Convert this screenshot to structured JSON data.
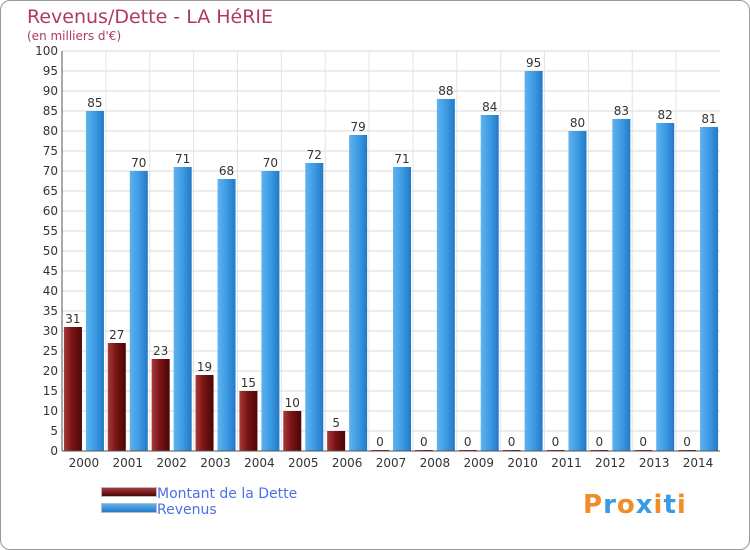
{
  "chart_data": {
    "type": "bar",
    "title": "Revenus/Dette - LA HéRIE",
    "subtitle": "(en milliers d'€)",
    "categories": [
      "2000",
      "2001",
      "2002",
      "2003",
      "2004",
      "2005",
      "2006",
      "2007",
      "2008",
      "2009",
      "2010",
      "2011",
      "2012",
      "2013",
      "2014"
    ],
    "ylim": [
      0,
      100
    ],
    "ytick_step": 5,
    "grid": true,
    "series": [
      {
        "name": "Montant de la Dette",
        "color": "#7a1414",
        "values": [
          31,
          27,
          23,
          19,
          15,
          10,
          5,
          0,
          0,
          0,
          0,
          0,
          0,
          0,
          0
        ]
      },
      {
        "name": "Revenus",
        "color": "#3d9be3",
        "values": [
          85,
          70,
          71,
          68,
          70,
          72,
          79,
          71,
          88,
          84,
          95,
          80,
          83,
          82,
          81
        ]
      }
    ],
    "legend_position": "bottom-left"
  },
  "logo": {
    "text": "Proxiti",
    "colors": [
      "#f28c28",
      "#3a9be0",
      "#f28c28",
      "#3a9be0",
      "#f28c28",
      "#3a9be0",
      "#f28c28"
    ]
  }
}
